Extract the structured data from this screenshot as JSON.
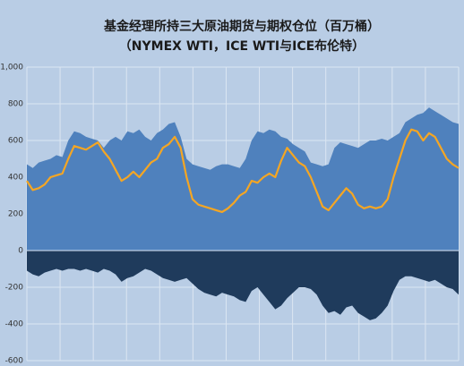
{
  "chart_data": {
    "type": "area",
    "title": "基金经理所持三大原油期货与期权仓位（百万桶）",
    "subtitle": "（NYMEX WTI，ICE WTI与ICE布伦特）",
    "categories": [
      null,
      null,
      null,
      null,
      null,
      null,
      null,
      null,
      null,
      null,
      null,
      null,
      null,
      null,
      null,
      null,
      null,
      null,
      null,
      null,
      null,
      null,
      null,
      null,
      null,
      null,
      null,
      null,
      null,
      null,
      null,
      null,
      null,
      null,
      null,
      null,
      null,
      null,
      null,
      null,
      null,
      null,
      null,
      null,
      null,
      null,
      null,
      null,
      null,
      null,
      null,
      null,
      null,
      null,
      null,
      null,
      null,
      null,
      null,
      null,
      null,
      null,
      null,
      null,
      null,
      null,
      null,
      null,
      null,
      null,
      null,
      null,
      null,
      null
    ],
    "series": [
      {
        "kind": "area",
        "color": "#4f81bd",
        "values": [
          470,
          450,
          480,
          490,
          500,
          520,
          510,
          600,
          650,
          640,
          620,
          610,
          600,
          560,
          600,
          620,
          600,
          650,
          640,
          660,
          620,
          600,
          640,
          660,
          690,
          700,
          620,
          500,
          470,
          460,
          450,
          440,
          460,
          470,
          470,
          460,
          450,
          500,
          600,
          650,
          640,
          660,
          650,
          620,
          610,
          580,
          560,
          540,
          480,
          470,
          460,
          470,
          560,
          590,
          580,
          570,
          560,
          580,
          600,
          600,
          610,
          600,
          620,
          640,
          700,
          720,
          740,
          750,
          780,
          760,
          740,
          720,
          700,
          690
        ]
      },
      {
        "kind": "area",
        "color": "#1f3b5c",
        "values": [
          -110,
          -130,
          -140,
          -120,
          -110,
          -100,
          -110,
          -100,
          -100,
          -110,
          -100,
          -110,
          -120,
          -100,
          -110,
          -130,
          -170,
          -150,
          -140,
          -120,
          -100,
          -110,
          -130,
          -150,
          -160,
          -170,
          -160,
          -150,
          -180,
          -210,
          -230,
          -240,
          -250,
          -230,
          -240,
          -250,
          -270,
          -280,
          -220,
          -200,
          -240,
          -280,
          -320,
          -300,
          -260,
          -230,
          -200,
          -200,
          -210,
          -240,
          -300,
          -340,
          -330,
          -350,
          -310,
          -300,
          -340,
          -360,
          -380,
          -370,
          -340,
          -300,
          -220,
          -160,
          -140,
          -140,
          -150,
          -160,
          -170,
          -160,
          -180,
          -200,
          -210,
          -240
        ]
      },
      {
        "kind": "line",
        "color": "#f5a623",
        "values": [
          380,
          330,
          340,
          360,
          400,
          410,
          420,
          500,
          570,
          560,
          550,
          570,
          590,
          540,
          500,
          440,
          380,
          400,
          430,
          400,
          440,
          480,
          500,
          560,
          580,
          620,
          560,
          400,
          280,
          250,
          240,
          230,
          220,
          210,
          230,
          260,
          300,
          320,
          380,
          370,
          400,
          420,
          400,
          490,
          560,
          520,
          480,
          460,
          400,
          320,
          240,
          220,
          260,
          300,
          340,
          310,
          250,
          230,
          240,
          230,
          240,
          280,
          400,
          500,
          600,
          660,
          650,
          600,
          640,
          620,
          560,
          500,
          470,
          450
        ]
      }
    ],
    "ylim": [
      -600,
      1000
    ],
    "yticks": [
      -600,
      -400,
      -200,
      0,
      200,
      400,
      600,
      800,
      {
        "value": 1000,
        "label": "1,000"
      }
    ],
    "grid": true
  }
}
